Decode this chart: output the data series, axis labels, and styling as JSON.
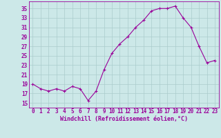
{
  "x": [
    0,
    1,
    2,
    3,
    4,
    5,
    6,
    7,
    8,
    9,
    10,
    11,
    12,
    13,
    14,
    15,
    16,
    17,
    18,
    19,
    20,
    21,
    22,
    23
  ],
  "y": [
    19,
    18,
    17.5,
    18,
    17.5,
    18.5,
    18,
    15.5,
    17.5,
    22,
    25.5,
    27.5,
    29,
    31,
    32.5,
    34.5,
    35,
    35,
    35.5,
    33,
    31,
    27,
    23.5,
    24
  ],
  "line_color": "#990099",
  "marker": "+",
  "marker_size": 3,
  "bg_color": "#cce8e8",
  "grid_color": "#aacccc",
  "tick_color": "#990099",
  "label_color": "#990099",
  "xlabel": "Windchill (Refroidissement éolien,°C)",
  "xtick_labels": [
    "0",
    "1",
    "2",
    "3",
    "4",
    "5",
    "6",
    "7",
    "8",
    "9",
    "10",
    "11",
    "12",
    "13",
    "14",
    "15",
    "16",
    "17",
    "18",
    "19",
    "20",
    "21",
    "22",
    "23"
  ],
  "ytick_labels": [
    "15",
    "17",
    "19",
    "21",
    "23",
    "25",
    "27",
    "29",
    "31",
    "33",
    "35"
  ],
  "ytick_values": [
    15,
    17,
    19,
    21,
    23,
    25,
    27,
    29,
    31,
    33,
    35
  ],
  "ylim": [
    14.0,
    36.5
  ],
  "xlim": [
    -0.5,
    23.5
  ],
  "tick_fontsize": 5.5,
  "xlabel_fontsize": 6.0
}
